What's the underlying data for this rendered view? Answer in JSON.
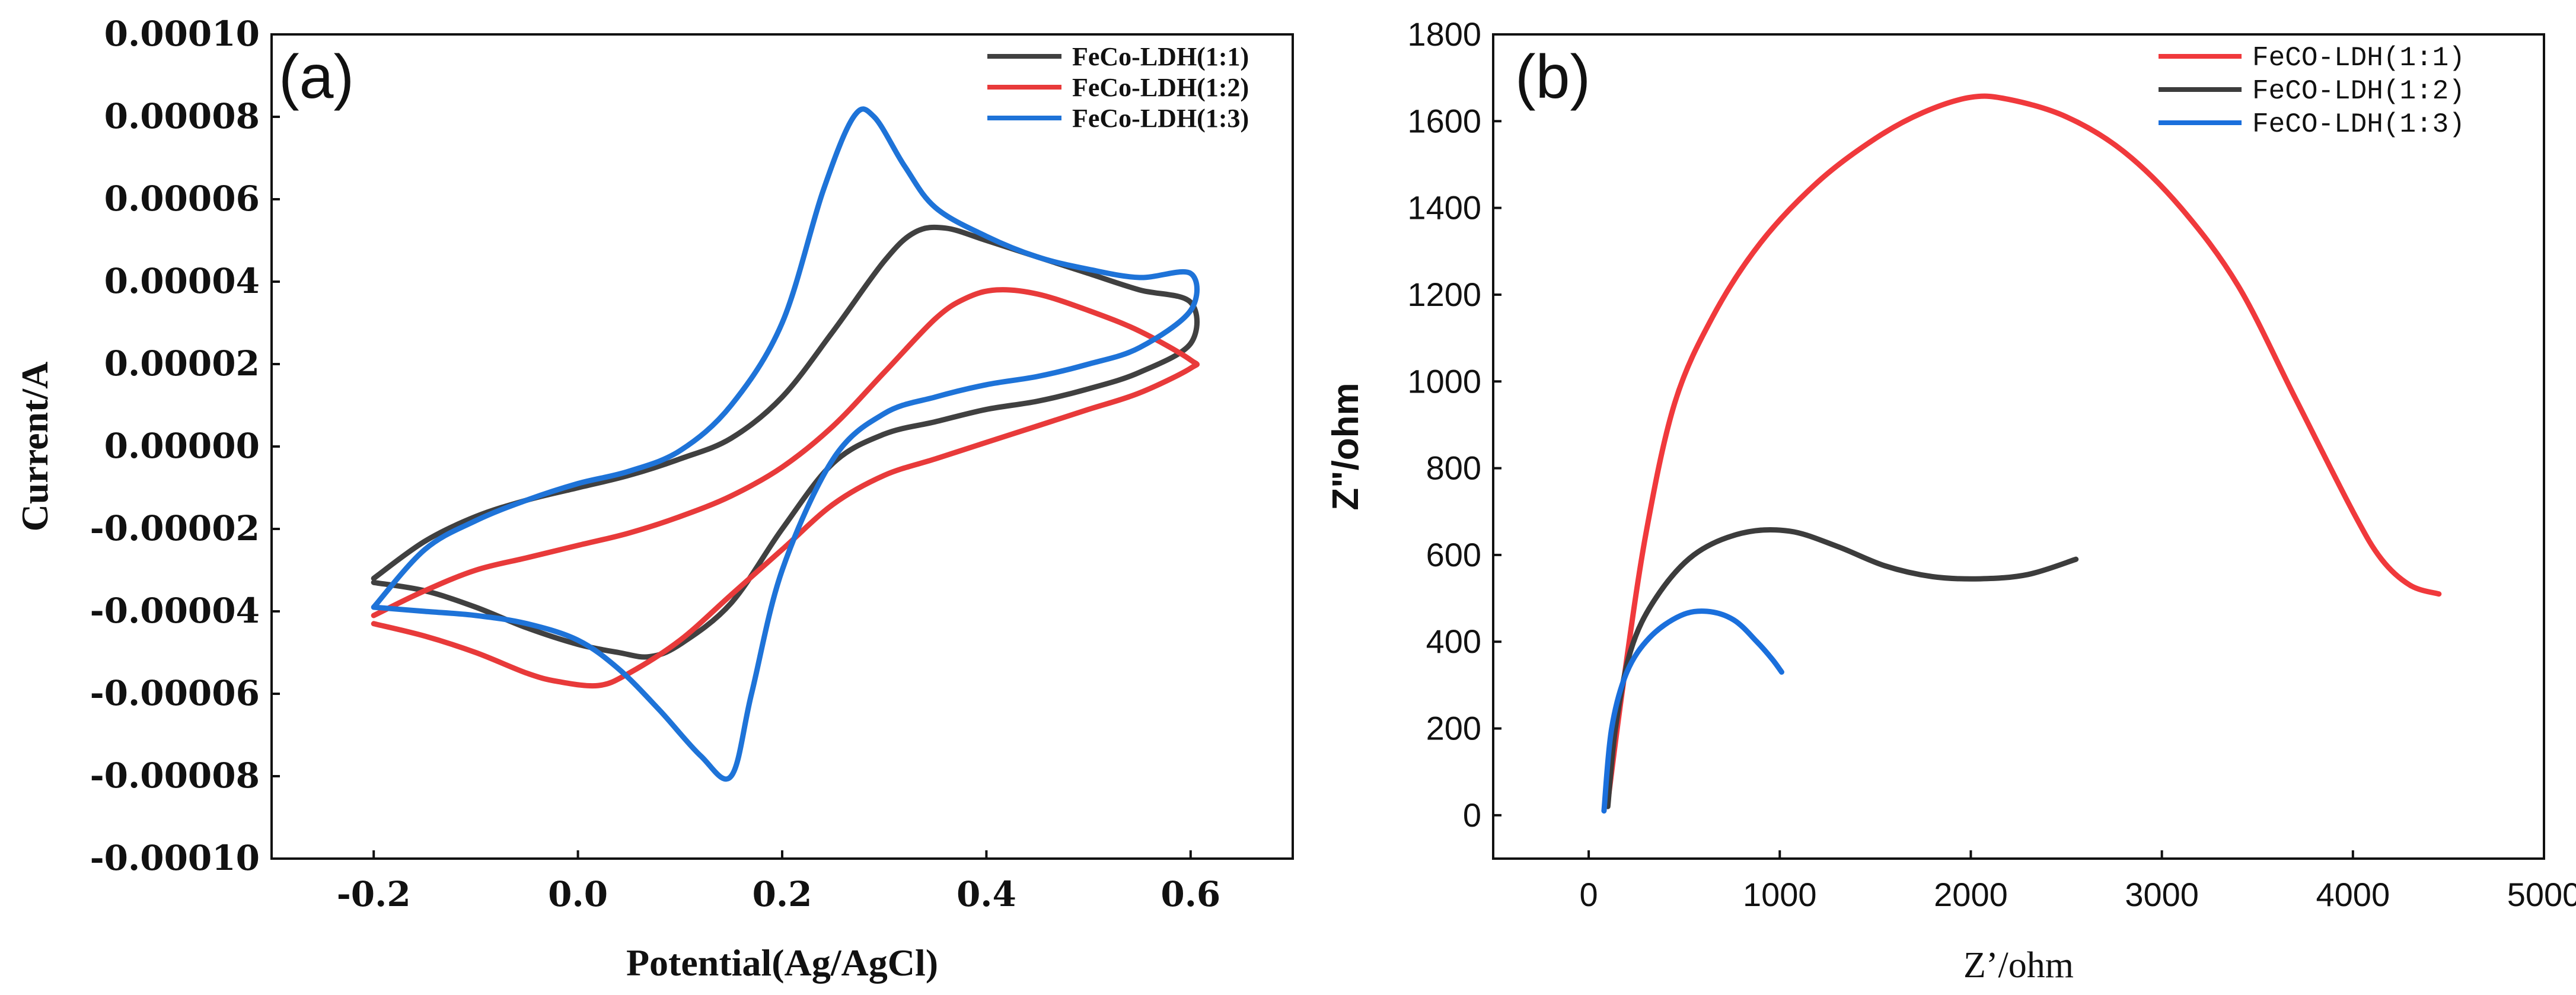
{
  "chart_data": [
    {
      "id": "a",
      "type": "line",
      "panel_label": "(a)",
      "title": "",
      "xlabel": "Potential(Ag/AgCl)",
      "ylabel": "Current/A",
      "xlim": [
        -0.3,
        0.7
      ],
      "ylim": [
        -0.0001,
        0.0001
      ],
      "xticks": [
        -0.2,
        0.0,
        0.2,
        0.4,
        0.6
      ],
      "xtick_labels": [
        "-0.2",
        "0.0",
        "0.2",
        "0.4",
        "0.6"
      ],
      "yticks": [
        0.0001,
        8e-05,
        6e-05,
        4e-05,
        2e-05,
        0.0,
        -2e-05,
        -4e-05,
        -6e-05,
        -8e-05,
        -0.0001
      ],
      "ytick_labels": [
        "0.00010",
        "0.00008",
        "0.00006",
        "0.00004",
        "0.00002",
        "0.00000",
        "-0.00002",
        "-0.00004",
        "-0.00006",
        "-0.00008",
        "-0.00010"
      ],
      "legend_position": "top-right",
      "series": [
        {
          "name": "FeCo-LDH(1:1)",
          "color": "#404040",
          "points": [
            [
              -0.2,
              -3.2e-05
            ],
            [
              -0.15,
              -2.3e-05
            ],
            [
              -0.1,
              -1.7e-05
            ],
            [
              -0.05,
              -1.3e-05
            ],
            [
              0.0,
              -1e-05
            ],
            [
              0.05,
              -7e-06
            ],
            [
              0.1,
              -3e-06
            ],
            [
              0.15,
              2e-06
            ],
            [
              0.2,
              1.2e-05
            ],
            [
              0.25,
              2.8e-05
            ],
            [
              0.3,
              4.5e-05
            ],
            [
              0.33,
              5.2e-05
            ],
            [
              0.36,
              5.3e-05
            ],
            [
              0.4,
              5e-05
            ],
            [
              0.45,
              4.6e-05
            ],
            [
              0.5,
              4.2e-05
            ],
            [
              0.55,
              3.8e-05
            ],
            [
              0.6,
              3.5e-05
            ],
            [
              0.6,
              2.5e-05
            ],
            [
              0.55,
              1.8e-05
            ],
            [
              0.5,
              1.4e-05
            ],
            [
              0.45,
              1.1e-05
            ],
            [
              0.4,
              9e-06
            ],
            [
              0.35,
              6e-06
            ],
            [
              0.3,
              3e-06
            ],
            [
              0.25,
              -4e-06
            ],
            [
              0.2,
              -2e-05
            ],
            [
              0.15,
              -3.8e-05
            ],
            [
              0.1,
              -4.8e-05
            ],
            [
              0.07,
              -5.1e-05
            ],
            [
              0.04,
              -5e-05
            ],
            [
              0.0,
              -4.8e-05
            ],
            [
              -0.05,
              -4.4e-05
            ],
            [
              -0.1,
              -3.9e-05
            ],
            [
              -0.15,
              -3.5e-05
            ],
            [
              -0.2,
              -3.3e-05
            ]
          ]
        },
        {
          "name": "FeCo-LDH(1:2)",
          "color": "#e83a3a",
          "points": [
            [
              -0.2,
              -4.1e-05
            ],
            [
              -0.15,
              -3.5e-05
            ],
            [
              -0.1,
              -3e-05
            ],
            [
              -0.05,
              -2.7e-05
            ],
            [
              0.0,
              -2.4e-05
            ],
            [
              0.05,
              -2.1e-05
            ],
            [
              0.1,
              -1.7e-05
            ],
            [
              0.15,
              -1.2e-05
            ],
            [
              0.2,
              -5e-06
            ],
            [
              0.25,
              5e-06
            ],
            [
              0.3,
              1.8e-05
            ],
            [
              0.35,
              3.1e-05
            ],
            [
              0.38,
              3.6e-05
            ],
            [
              0.41,
              3.8e-05
            ],
            [
              0.45,
              3.7e-05
            ],
            [
              0.5,
              3.3e-05
            ],
            [
              0.55,
              2.8e-05
            ],
            [
              0.6,
              2.1e-05
            ],
            [
              0.6,
              1.9e-05
            ],
            [
              0.55,
              1.3e-05
            ],
            [
              0.5,
              9e-06
            ],
            [
              0.45,
              5e-06
            ],
            [
              0.4,
              1e-06
            ],
            [
              0.35,
              -3e-06
            ],
            [
              0.3,
              -7e-06
            ],
            [
              0.25,
              -1.4e-05
            ],
            [
              0.2,
              -2.5e-05
            ],
            [
              0.15,
              -3.6e-05
            ],
            [
              0.1,
              -4.7e-05
            ],
            [
              0.05,
              -5.5e-05
            ],
            [
              0.02,
              -5.8e-05
            ],
            [
              -0.02,
              -5.7e-05
            ],
            [
              -0.05,
              -5.5e-05
            ],
            [
              -0.1,
              -5e-05
            ],
            [
              -0.15,
              -4.6e-05
            ],
            [
              -0.2,
              -4.3e-05
            ]
          ]
        },
        {
          "name": "FeCo-LDH(1:3)",
          "color": "#1e73d8",
          "points": [
            [
              -0.2,
              -3.9e-05
            ],
            [
              -0.15,
              -2.5e-05
            ],
            [
              -0.1,
              -1.8e-05
            ],
            [
              -0.05,
              -1.3e-05
            ],
            [
              0.0,
              -9e-06
            ],
            [
              0.05,
              -6e-06
            ],
            [
              0.1,
              -1e-06
            ],
            [
              0.15,
              1e-05
            ],
            [
              0.2,
              3e-05
            ],
            [
              0.24,
              6.2e-05
            ],
            [
              0.27,
              8e-05
            ],
            [
              0.29,
              8e-05
            ],
            [
              0.32,
              6.8e-05
            ],
            [
              0.35,
              5.8e-05
            ],
            [
              0.4,
              5.1e-05
            ],
            [
              0.45,
              4.6e-05
            ],
            [
              0.5,
              4.3e-05
            ],
            [
              0.55,
              4.1e-05
            ],
            [
              0.6,
              4.2e-05
            ],
            [
              0.6,
              3.3e-05
            ],
            [
              0.55,
              2.4e-05
            ],
            [
              0.5,
              2e-05
            ],
            [
              0.45,
              1.7e-05
            ],
            [
              0.4,
              1.5e-05
            ],
            [
              0.35,
              1.2e-05
            ],
            [
              0.3,
              8e-06
            ],
            [
              0.25,
              -3e-06
            ],
            [
              0.2,
              -3e-05
            ],
            [
              0.17,
              -6e-05
            ],
            [
              0.15,
              -8e-05
            ],
            [
              0.12,
              -7.5e-05
            ],
            [
              0.08,
              -6.4e-05
            ],
            [
              0.04,
              -5.4e-05
            ],
            [
              0.0,
              -4.7e-05
            ],
            [
              -0.05,
              -4.3e-05
            ],
            [
              -0.1,
              -4.1e-05
            ],
            [
              -0.15,
              -4e-05
            ],
            [
              -0.2,
              -3.9e-05
            ]
          ]
        }
      ]
    },
    {
      "id": "b",
      "type": "line",
      "panel_label": "(b)",
      "title": "",
      "xlabel": "Z’/ohm",
      "ylabel": "Z\"/ohm",
      "xlim": [
        -500,
        5000
      ],
      "ylim": [
        -100,
        1800
      ],
      "xticks": [
        0,
        1000,
        2000,
        3000,
        4000,
        5000
      ],
      "xtick_labels": [
        "0",
        "1000",
        "2000",
        "3000",
        "4000",
        "5000"
      ],
      "yticks": [
        0,
        200,
        400,
        600,
        800,
        1000,
        1200,
        1400,
        1600,
        1800
      ],
      "ytick_labels": [
        "0",
        "200",
        "400",
        "600",
        "800",
        "1000",
        "1200",
        "1400",
        "1600",
        "1800"
      ],
      "legend_position": "top-right",
      "series": [
        {
          "name": "FeCO-LDH(1:1)",
          "color": "#f0393c",
          "points": [
            [
              100,
              30
            ],
            [
              180,
              300
            ],
            [
              300,
              650
            ],
            [
              450,
              950
            ],
            [
              650,
              1150
            ],
            [
              900,
              1320
            ],
            [
              1200,
              1460
            ],
            [
              1500,
              1560
            ],
            [
              1750,
              1620
            ],
            [
              2000,
              1655
            ],
            [
              2200,
              1650
            ],
            [
              2500,
              1610
            ],
            [
              2800,
              1530
            ],
            [
              3100,
              1400
            ],
            [
              3400,
              1220
            ],
            [
              3700,
              960
            ],
            [
              4000,
              700
            ],
            [
              4150,
              590
            ],
            [
              4300,
              530
            ],
            [
              4450,
              510
            ]
          ]
        },
        {
          "name": "FeCO-LDH(1:2)",
          "color": "#3c3c3c",
          "points": [
            [
              100,
              20
            ],
            [
              140,
              200
            ],
            [
              220,
              380
            ],
            [
              350,
              500
            ],
            [
              550,
              600
            ],
            [
              800,
              650
            ],
            [
              1050,
              655
            ],
            [
              1300,
              620
            ],
            [
              1550,
              575
            ],
            [
              1800,
              550
            ],
            [
              2050,
              545
            ],
            [
              2300,
              555
            ],
            [
              2550,
              590
            ]
          ]
        },
        {
          "name": "FeCO-LDH(1:3)",
          "color": "#1a6fdc",
          "points": [
            [
              80,
              10
            ],
            [
              120,
              200
            ],
            [
              200,
              330
            ],
            [
              320,
              410
            ],
            [
              480,
              460
            ],
            [
              620,
              470
            ],
            [
              760,
              450
            ],
            [
              880,
              400
            ],
            [
              960,
              360
            ],
            [
              1010,
              330
            ]
          ]
        }
      ]
    }
  ]
}
